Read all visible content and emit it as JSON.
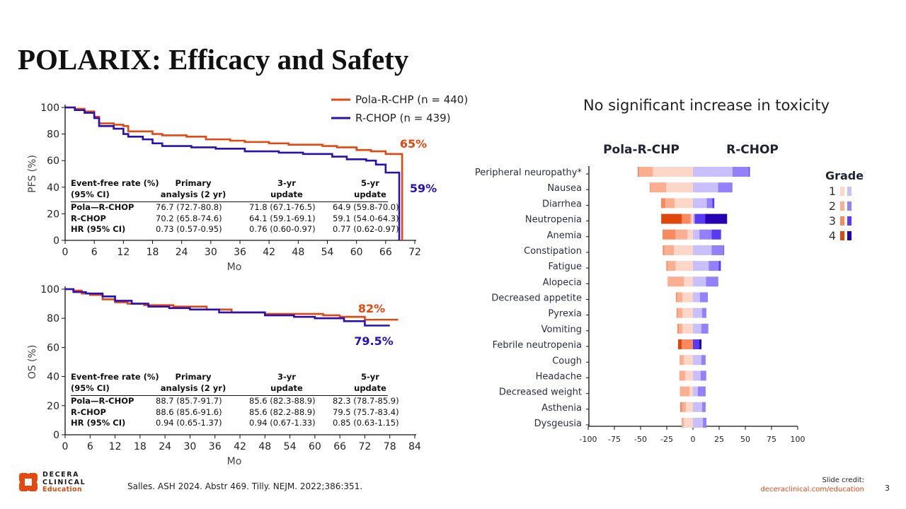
{
  "title": "POLARIX: Efficacy and Safety",
  "colors": {
    "pola": "#e5480f",
    "rchop": "#2a0fb5",
    "pola_grades": [
      "#fcd7c8",
      "#fbae90",
      "#f98a60",
      "#e0470d"
    ],
    "rchop_grades": [
      "#c8bffc",
      "#9480fa",
      "#5b3af5",
      "#2400b0"
    ],
    "accent": "#e5480f"
  },
  "chart_data": [
    {
      "type": "line",
      "step": true,
      "ylabel": "PFS (%)",
      "xlabel": "Mo",
      "xlim": [
        0,
        72
      ],
      "ylim": [
        0,
        100
      ],
      "xticks": [
        0,
        6,
        12,
        18,
        24,
        30,
        36,
        42,
        48,
        54,
        60,
        66,
        72
      ],
      "yticks": [
        0,
        20,
        40,
        60,
        80,
        100
      ],
      "legend": "top-right",
      "series": [
        {
          "name": "Pola-R-CHP (n = 440)",
          "color": "#e5480f",
          "end_label": "65%",
          "points": [
            [
              0,
              100
            ],
            [
              2,
              99
            ],
            [
              4,
              97
            ],
            [
              6,
              93
            ],
            [
              7,
              88
            ],
            [
              10,
              87
            ],
            [
              12,
              86
            ],
            [
              13,
              82
            ],
            [
              18,
              80
            ],
            [
              20,
              79
            ],
            [
              25,
              78
            ],
            [
              29,
              76
            ],
            [
              34,
              75
            ],
            [
              37,
              74
            ],
            [
              42,
              73
            ],
            [
              46,
              72
            ],
            [
              53,
              71
            ],
            [
              56,
              70
            ],
            [
              60,
              68
            ],
            [
              63,
              67
            ],
            [
              66,
              65
            ],
            [
              69.4,
              65
            ],
            [
              69.4,
              0
            ]
          ]
        },
        {
          "name": "R-CHOP (n = 439)",
          "color": "#2a0fb5",
          "end_label": "59%",
          "points": [
            [
              0,
              100
            ],
            [
              2,
              98
            ],
            [
              4,
              96
            ],
            [
              6,
              92
            ],
            [
              7,
              86
            ],
            [
              10,
              84
            ],
            [
              12,
              80
            ],
            [
              13,
              78
            ],
            [
              16,
              76
            ],
            [
              18,
              73
            ],
            [
              20,
              71
            ],
            [
              26,
              70
            ],
            [
              31,
              69
            ],
            [
              37,
              67
            ],
            [
              44,
              66
            ],
            [
              49,
              65
            ],
            [
              55,
              63
            ],
            [
              58,
              61
            ],
            [
              62,
              60
            ],
            [
              64,
              57
            ],
            [
              66,
              51
            ],
            [
              68.8,
              51
            ],
            [
              68.8,
              0
            ]
          ]
        }
      ],
      "table": {
        "header": [
          "Event-free rate (%)\n(95% CI)",
          "Primary\nanalysis (2 yr)",
          "3-yr\nupdate",
          "5-yr\nupdate"
        ],
        "rows": [
          [
            "Pola—R-CHOP",
            "76.7 (72.7-80.8)",
            "71.8 (67.1-76.5)",
            "64.9 (59.8-70.0)"
          ],
          [
            "R-CHOP",
            "70.2 (65.8-74.6)",
            "64.1 (59.1-69.1)",
            "59.1 (54.0-64.3)"
          ],
          [
            "HR (95% CI)",
            "0.73 (0.57-0.95)",
            "0.76 (0.60-0.97)",
            "0.77 (0.62-0.97)"
          ]
        ]
      }
    },
    {
      "type": "line",
      "step": true,
      "ylabel": "OS (%)",
      "xlabel": "Mo",
      "xlim": [
        0,
        84
      ],
      "ylim": [
        0,
        100
      ],
      "xticks": [
        0,
        6,
        12,
        18,
        24,
        30,
        36,
        42,
        48,
        54,
        60,
        66,
        72,
        78,
        84
      ],
      "yticks": [
        0,
        20,
        40,
        60,
        80,
        100
      ],
      "series": [
        {
          "color": "#e5480f",
          "end_label": "82%",
          "points": [
            [
              0,
              100
            ],
            [
              2,
              99
            ],
            [
              4,
              97
            ],
            [
              6,
              96
            ],
            [
              9,
              93
            ],
            [
              12,
              91
            ],
            [
              15,
              90
            ],
            [
              19,
              89
            ],
            [
              26,
              88
            ],
            [
              34,
              86
            ],
            [
              40,
              84
            ],
            [
              48,
              83
            ],
            [
              62,
              82
            ],
            [
              66,
              81
            ],
            [
              72,
              79
            ],
            [
              80,
              79
            ]
          ]
        },
        {
          "color": "#2a0fb5",
          "end_label": "79.5%",
          "points": [
            [
              0,
              100
            ],
            [
              2,
              98
            ],
            [
              5,
              97
            ],
            [
              9,
              95
            ],
            [
              12,
              92
            ],
            [
              16,
              90
            ],
            [
              20,
              88
            ],
            [
              25,
              87
            ],
            [
              30,
              86
            ],
            [
              37,
              84
            ],
            [
              48,
              82
            ],
            [
              55,
              81
            ],
            [
              60,
              80
            ],
            [
              67,
              78
            ],
            [
              72,
              75
            ],
            [
              78,
              75
            ]
          ]
        }
      ],
      "table": {
        "header": [
          "Event-free rate (%)\n(95% CI)",
          "Primary\nanalysis (2 yr)",
          "3-yr\nupdate",
          "5-yr\nupdate"
        ],
        "rows": [
          [
            "Pola—R-CHOP",
            "88.7 (85.7-91.7)",
            "85.6 (82.3-88.9)",
            "82.3 (78.7-85.9)"
          ],
          [
            "R-CHOP",
            "88.6 (85.6-91.6)",
            "85.6 (82.2-88.9)",
            "79.5 (75.7-83.4)"
          ],
          [
            "HR (95% CI)",
            "0.94 (0.65-1.37)",
            "0.94 (0.67-1.33)",
            "0.85 (0.63-1.15)"
          ]
        ]
      }
    },
    {
      "type": "bar",
      "orientation": "horizontal",
      "stacked": true,
      "diverging": true,
      "title": "No significant increase in toxicity",
      "group_labels": [
        "Pola-R-CHP",
        "R-CHOP"
      ],
      "xlim": [
        -100,
        100
      ],
      "xticks": [
        -100,
        -75,
        -50,
        -25,
        0,
        25,
        50,
        75,
        100
      ],
      "legend_title": "Grade",
      "grades": [
        "1",
        "2",
        "3",
        "4"
      ],
      "categories": [
        "Peripheral neuropathy*",
        "Nausea",
        "Diarrhea",
        "Neutropenia",
        "Anemia",
        "Constipation",
        "Fatigue",
        "Alopecia",
        "Decreased appetite",
        "Pyrexia",
        "Vomiting",
        "Febrile neutropenia",
        "Cough",
        "Headache",
        "Decreased weight",
        "Asthenia",
        "Dysgeusia"
      ],
      "pola_r_chp": [
        [
          38.4,
          13,
          1.3,
          0
        ],
        [
          25.5,
          15.3,
          0.5,
          0
        ],
        [
          17.4,
          8.8,
          4.2,
          0
        ],
        [
          1.3,
          1.3,
          8,
          19.7
        ],
        [
          5.2,
          11.4,
          11.7,
          0.5
        ],
        [
          18.2,
          9.1,
          1.5,
          0
        ],
        [
          16.6,
          7.5,
          1.3,
          0
        ],
        [
          8.6,
          15.6,
          0,
          0
        ],
        [
          10.1,
          5,
          1.1,
          0
        ],
        [
          10.1,
          4.5,
          1,
          0
        ],
        [
          10.1,
          3.4,
          1.3,
          0
        ],
        [
          0,
          0,
          10.8,
          3.4
        ],
        [
          8.8,
          4,
          0,
          0
        ],
        [
          7.4,
          5,
          0.5,
          0
        ],
        [
          3.4,
          8.6,
          0.4,
          0
        ],
        [
          6.8,
          3.4,
          2,
          0
        ],
        [
          8.8,
          2,
          0,
          0
        ]
      ],
      "r_chop": [
        [
          37.7,
          15.6,
          1,
          0
        ],
        [
          24,
          13,
          0.5,
          0
        ],
        [
          13.2,
          5.2,
          2,
          0
        ],
        [
          1,
          1,
          9.6,
          21
        ],
        [
          6.2,
          11.7,
          8.3,
          0.5
        ],
        [
          17.9,
          11.4,
          0.5,
          0
        ],
        [
          15,
          9.6,
          2,
          0
        ],
        [
          12.5,
          11.7,
          0,
          0
        ],
        [
          6.8,
          7,
          0.3,
          0
        ],
        [
          8.8,
          4,
          0,
          0
        ],
        [
          8.1,
          6,
          0.4,
          0
        ],
        [
          0,
          0,
          6.1,
          2
        ],
        [
          8.1,
          4,
          0,
          0
        ],
        [
          7.4,
          4.7,
          0.4,
          0
        ],
        [
          4.7,
          6.8,
          0.4,
          0
        ],
        [
          8.8,
          2.7,
          0.4,
          0
        ],
        [
          9.5,
          3.4,
          0,
          0
        ]
      ]
    }
  ],
  "footer": {
    "citation": "Salles. ASH 2024. Abstr 469. Tilly. NEJM. 2022;386:351.",
    "credit_label": "Slide credit:",
    "credit_link": "deceraclinical.com/education",
    "page_number": "3",
    "logo": {
      "line1": "DECERA",
      "line2": "CLINICAL",
      "line3": "Education"
    }
  }
}
